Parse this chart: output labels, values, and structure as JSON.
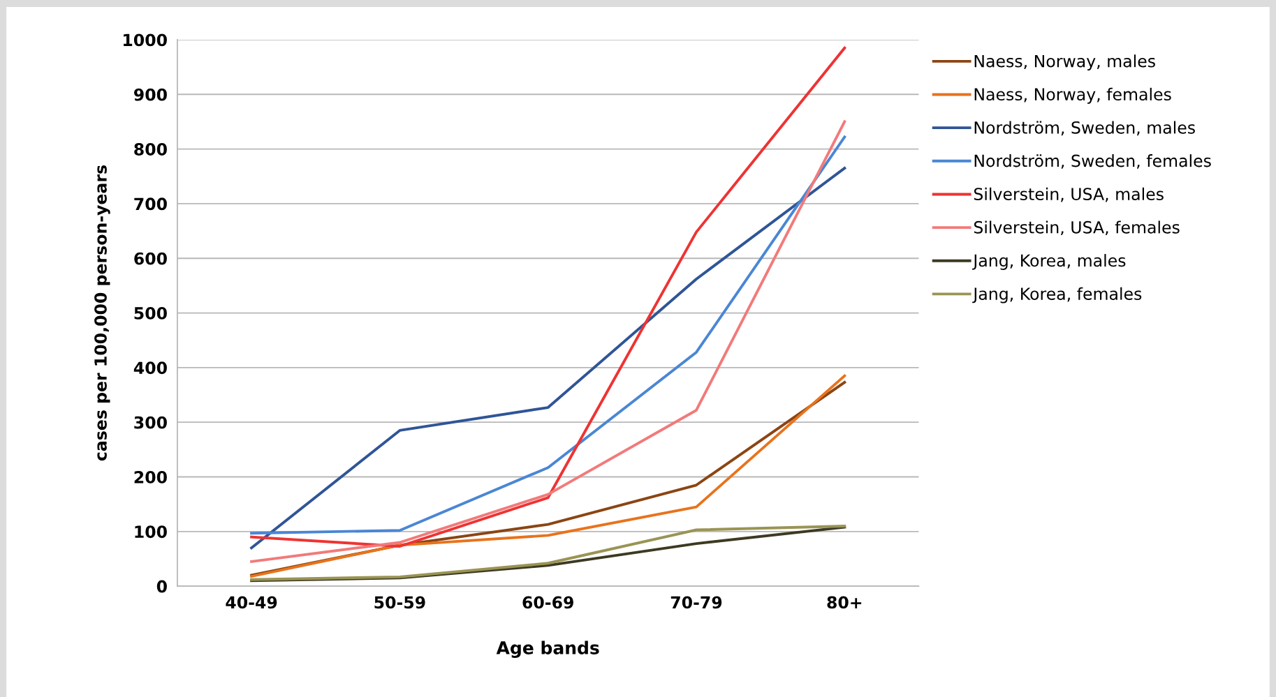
{
  "chart_data": {
    "type": "line",
    "xlabel": "Age bands",
    "ylabel": "cases per 100,000 person-years",
    "categories": [
      "40-49",
      "50-59",
      "60-69",
      "70-79",
      "80+"
    ],
    "series": [
      {
        "name": "Naess, Norway, males",
        "color": "#8b4513",
        "values": [
          20,
          75,
          113,
          185,
          373
        ]
      },
      {
        "name": "Naess, Norway, females",
        "color": "#e8731c",
        "values": [
          18,
          75,
          93,
          145,
          385
        ]
      },
      {
        "name": "Nordström, Sweden, males",
        "color": "#2f5597",
        "values": [
          70,
          285,
          327,
          562,
          765
        ]
      },
      {
        "name": "Nordström, Sweden, females",
        "color": "#4a86d4",
        "values": [
          97,
          102,
          217,
          428,
          822
        ]
      },
      {
        "name": "Silverstein, USA, males",
        "color": "#ee3333",
        "values": [
          90,
          73,
          162,
          648,
          985
        ]
      },
      {
        "name": "Silverstein, USA, females",
        "color": "#f27a7a",
        "values": [
          45,
          80,
          168,
          322,
          850
        ]
      },
      {
        "name": "Jang, Korea, males",
        "color": "#3d3a22",
        "values": [
          10,
          15,
          38,
          78,
          108
        ]
      },
      {
        "name": "Jang, Korea, females",
        "color": "#9a9455",
        "values": [
          12,
          17,
          42,
          103,
          110
        ]
      }
    ],
    "ylim": [
      0,
      1000
    ],
    "yticks": [
      0,
      100,
      200,
      300,
      400,
      500,
      600,
      700,
      800,
      900,
      1000
    ],
    "grid": "y",
    "legend": "right",
    "marker": "none",
    "line_style": "solid"
  }
}
